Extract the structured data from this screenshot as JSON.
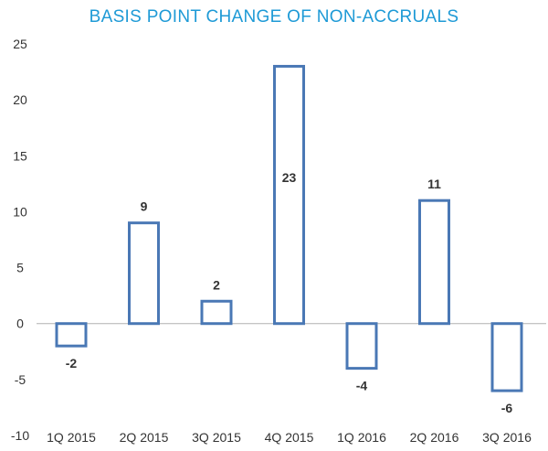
{
  "colors": {
    "title": "#1e9ad6",
    "bar_stroke": "#4a78b5",
    "axis": "#b0b0b0",
    "text": "#333333"
  },
  "chart_data": {
    "type": "bar",
    "title": "BASIS POINT CHANGE OF NON-ACCRUALS",
    "categories": [
      "1Q 2015",
      "2Q 2015",
      "3Q 2015",
      "4Q 2015",
      "1Q 2016",
      "2Q 2016",
      "3Q 2016"
    ],
    "values": [
      -2,
      9,
      2,
      23,
      -4,
      11,
      -6
    ],
    "data_labels": [
      "-2",
      "9",
      "2",
      "23",
      "-4",
      "11",
      "-6"
    ],
    "ylim": [
      -10,
      25
    ],
    "yticks": [
      25,
      20,
      15,
      10,
      5,
      0,
      -10
    ],
    "ytick_labels": [
      "25",
      "20",
      "15",
      "10",
      "5",
      "0",
      "-10"
    ],
    "ytick_minus5": {
      "value": -5,
      "label": "-5"
    },
    "xlabel": "",
    "ylabel": "",
    "grid": false,
    "legend": "none"
  }
}
